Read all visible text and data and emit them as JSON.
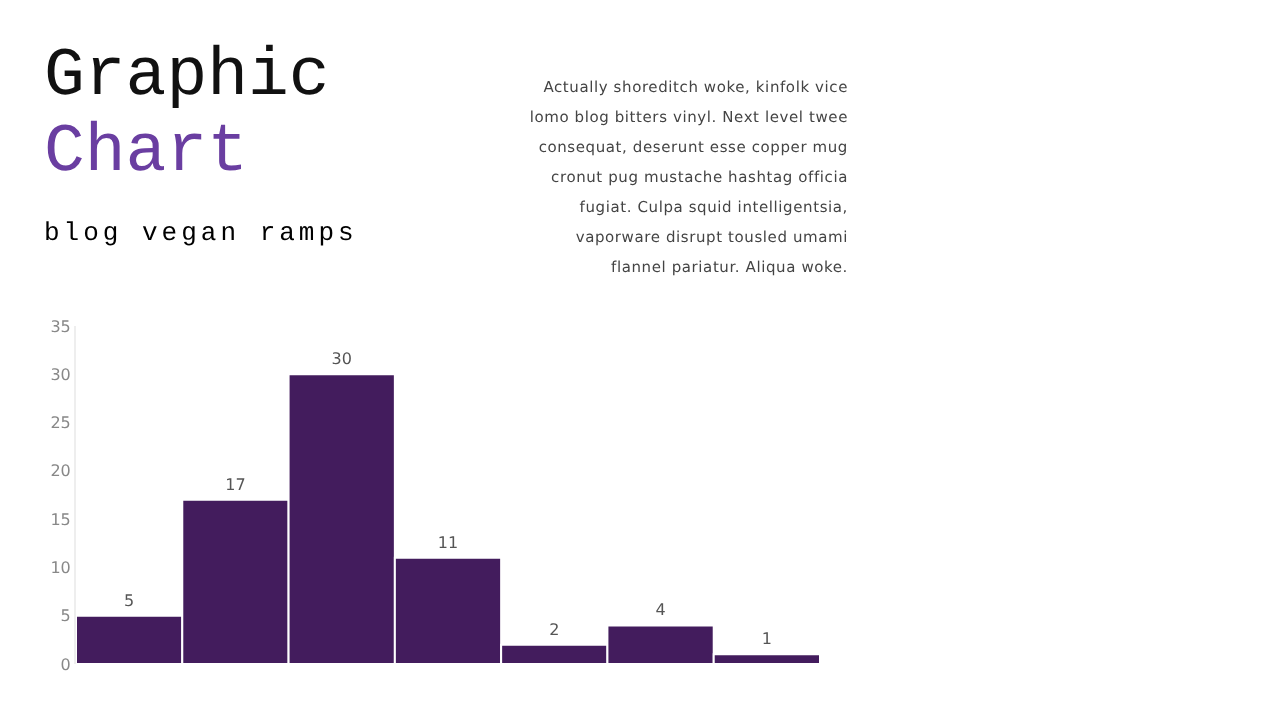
{
  "chart_data": {
    "type": "bar",
    "title": "Graphic\nChart",
    "subtitle": "blog vegan ramps",
    "annotations": [
      "Actually shoreditch woke, kinfolk vice lomo blog bitters vinyl. Next level twee consequat, deserunt esse copper mug cronut pug mustache hashtag officia fugiat. Culpa squid intelligentsia, vaporware disrupt tousled umami flannel pariatur. Aliqua woke."
    ],
    "categories": [
      null,
      null,
      null,
      null,
      null,
      null,
      null
    ],
    "values": [
      5,
      17,
      30,
      11,
      2,
      4,
      1
    ],
    "color": "#431c5d",
    "ylim": [
      0,
      35
    ],
    "yticks": [
      0,
      5,
      10,
      15,
      20,
      25,
      30,
      35
    ],
    "data_labels": true,
    "grid": false,
    "legend": false,
    "tick_labels": "y"
  }
}
